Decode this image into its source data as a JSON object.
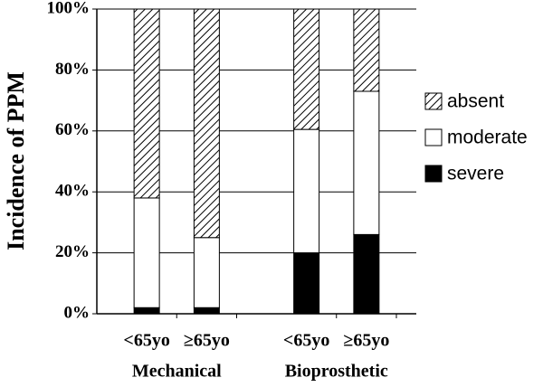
{
  "chart_data": {
    "type": "stacked-bar",
    "y_label": "Incidence of PPM",
    "groups": [
      {
        "name": "Mechanical",
        "categories": [
          "<65yo",
          "≥65yo"
        ]
      },
      {
        "name": "Bioprosthetic",
        "categories": [
          "<65yo",
          "≥65yo"
        ]
      }
    ],
    "series": [
      {
        "name": "severe",
        "color": "#000000",
        "values": [
          2,
          2,
          20,
          26
        ]
      },
      {
        "name": "moderate",
        "color": "#ffffff",
        "values": [
          36,
          23,
          40.5,
          47
        ]
      },
      {
        "name": "absent",
        "color": "#000000",
        "hatch": true,
        "values": [
          62,
          75,
          39.5,
          27
        ]
      }
    ],
    "ylim": [
      0,
      100
    ],
    "yticks": [
      {
        "value": 0,
        "label": "0%"
      },
      {
        "value": 20,
        "label": "20%"
      },
      {
        "value": 40,
        "label": "40%"
      },
      {
        "value": 60,
        "label": "60%"
      },
      {
        "value": 80,
        "label": "80%"
      },
      {
        "value": 100,
        "label": "100%"
      }
    ],
    "grid": true,
    "legend": "right"
  }
}
